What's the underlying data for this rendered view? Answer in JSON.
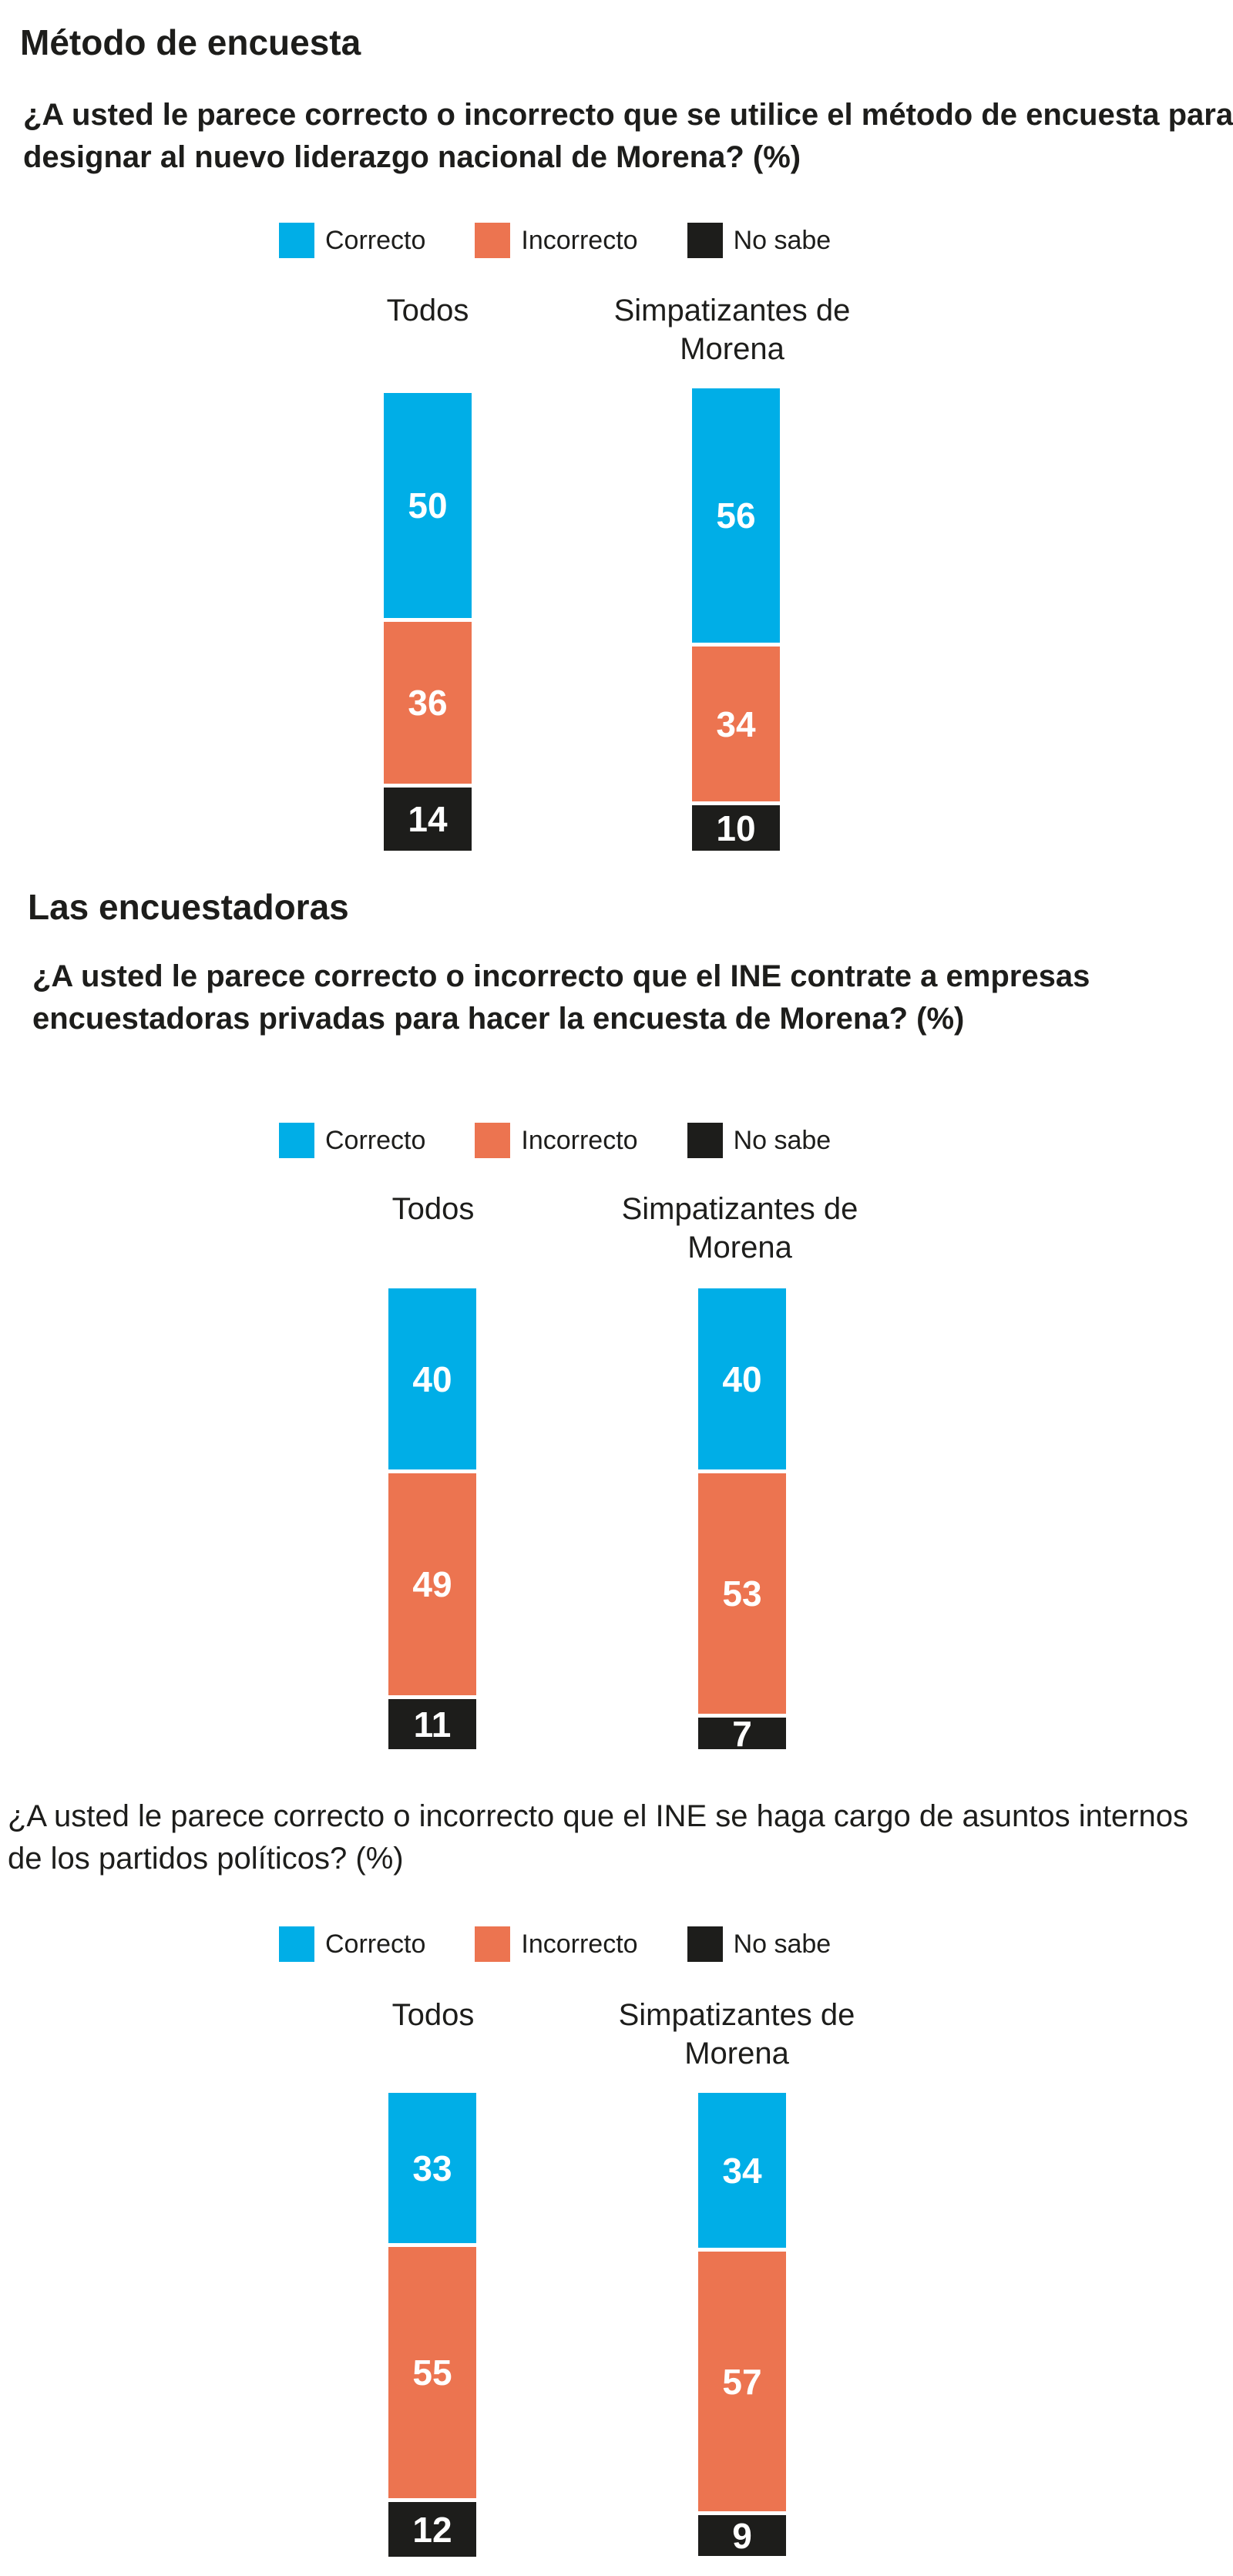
{
  "colors": {
    "correcto": "#00aee7",
    "incorrecto": "#ec7450",
    "no_sabe": "#1d1d1b"
  },
  "sections": [
    {
      "heading": "Método de encuesta",
      "question": "¿A usted le parece correcto o incorrecto que se utilice el método de encuesta para designar al nuevo liderazgo nacional de Morena?  (%)"
    },
    {
      "heading": "Las encuestadoras",
      "question": "¿A usted le parece correcto o incorrecto que el INE contrate a empresas encuestadoras privadas para hacer la encuesta de Morena? (%)"
    },
    {
      "heading": "",
      "question": "¿A usted le parece correcto o incorrecto que el INE se haga cargo de asuntos internos de los partidos políticos?  (%)"
    }
  ],
  "legend": [
    "Correcto",
    "Incorrecto",
    "No sabe"
  ],
  "groups": [
    "Todos",
    "Simpatizantes de Morena"
  ],
  "chart_data": [
    {
      "type": "bar",
      "stacked": true,
      "title": "¿A usted le parece correcto o incorrecto que se utilice el método de encuesta para designar al nuevo liderazgo nacional de Morena?  (%)",
      "categories": [
        "Todos",
        "Simpatizantes de Morena"
      ],
      "series": [
        {
          "name": "Correcto",
          "values": [
            50,
            56
          ]
        },
        {
          "name": "Incorrecto",
          "values": [
            36,
            34
          ]
        },
        {
          "name": "No sabe",
          "values": [
            14,
            10
          ]
        }
      ],
      "legend": "top"
    },
    {
      "type": "bar",
      "stacked": true,
      "title": "¿A usted le parece correcto o incorrecto que el INE contrate a empresas encuestadoras privadas para hacer la encuesta de Morena? (%)",
      "categories": [
        "Todos",
        "Simpatizantes de Morena"
      ],
      "series": [
        {
          "name": "Correcto",
          "values": [
            40,
            40
          ]
        },
        {
          "name": "Incorrecto",
          "values": [
            49,
            53
          ]
        },
        {
          "name": "No sabe",
          "values": [
            11,
            7
          ]
        }
      ],
      "legend": "top"
    },
    {
      "type": "bar",
      "stacked": true,
      "title": "¿A usted le parece correcto o incorrecto que el INE se haga cargo de asuntos internos de los partidos políticos?  (%)",
      "categories": [
        "Todos",
        "Simpatizantes de Morena"
      ],
      "series": [
        {
          "name": "Correcto",
          "values": [
            33,
            34
          ]
        },
        {
          "name": "Incorrecto",
          "values": [
            55,
            57
          ]
        },
        {
          "name": "No sabe",
          "values": [
            12,
            9
          ]
        }
      ],
      "legend": "top"
    }
  ]
}
